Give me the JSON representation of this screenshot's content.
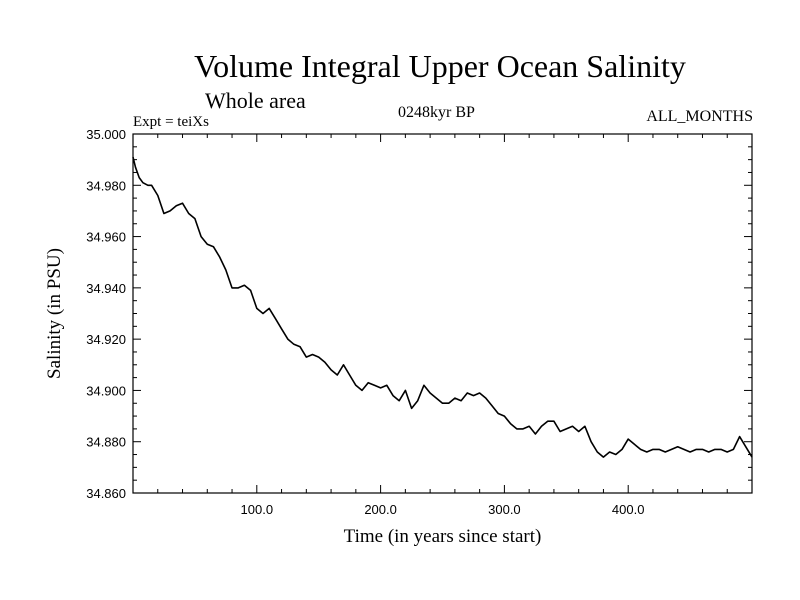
{
  "header": {
    "title": "Volume Integral Upper Ocean Salinity",
    "subtitle": "Whole area",
    "experiment": "Expt = teiXs",
    "period": "0248kyr BP",
    "months": "ALL_MONTHS"
  },
  "chart_data": {
    "type": "line",
    "title": "Volume Integral Upper Ocean Salinity",
    "subtitle": "Whole area",
    "xlabel": "Time (in years since start)",
    "ylabel": "Salinity (in PSU)",
    "xlim": [
      0,
      500
    ],
    "ylim": [
      34.86,
      35.0
    ],
    "xticks": [
      100,
      200,
      300,
      400
    ],
    "xtick_labels": [
      "100.0",
      "200.0",
      "300.0",
      "400.0"
    ],
    "yticks": [
      34.86,
      34.88,
      34.9,
      34.92,
      34.94,
      34.96,
      34.98,
      35.0
    ],
    "ytick_labels": [
      "34.860",
      "34.880",
      "34.900",
      "34.920",
      "34.940",
      "34.960",
      "34.980",
      "35.000"
    ],
    "grid": false,
    "legend": "none",
    "series": [
      {
        "color": "#000000",
        "x": [
          0,
          2,
          5,
          8,
          12,
          15,
          20,
          25,
          30,
          35,
          40,
          45,
          50,
          55,
          60,
          65,
          70,
          75,
          80,
          85,
          90,
          95,
          100,
          105,
          110,
          115,
          120,
          125,
          130,
          135,
          140,
          145,
          150,
          155,
          160,
          165,
          170,
          175,
          180,
          185,
          190,
          195,
          200,
          205,
          210,
          215,
          220,
          225,
          230,
          235,
          240,
          245,
          250,
          255,
          260,
          265,
          270,
          275,
          280,
          285,
          290,
          295,
          300,
          305,
          310,
          315,
          320,
          325,
          330,
          335,
          340,
          345,
          350,
          355,
          360,
          365,
          370,
          375,
          380,
          385,
          390,
          395,
          400,
          405,
          410,
          415,
          420,
          425,
          430,
          435,
          440,
          445,
          450,
          455,
          460,
          465,
          470,
          475,
          480,
          485,
          490,
          495,
          500
        ],
        "y": [
          34.991,
          34.987,
          34.983,
          34.981,
          34.98,
          34.98,
          34.976,
          34.969,
          34.97,
          34.972,
          34.973,
          34.969,
          34.967,
          34.96,
          34.957,
          34.956,
          34.952,
          34.947,
          34.94,
          34.94,
          34.941,
          34.939,
          34.932,
          34.93,
          34.932,
          34.928,
          34.924,
          34.92,
          34.918,
          34.917,
          34.913,
          34.914,
          34.913,
          34.911,
          34.908,
          34.906,
          34.91,
          34.906,
          34.902,
          34.9,
          34.903,
          34.902,
          34.901,
          34.902,
          34.898,
          34.896,
          34.9,
          34.893,
          34.896,
          34.902,
          34.899,
          34.897,
          34.895,
          34.895,
          34.897,
          34.896,
          34.899,
          34.898,
          34.899,
          34.897,
          34.894,
          34.891,
          34.89,
          34.887,
          34.885,
          34.885,
          34.886,
          34.883,
          34.886,
          34.888,
          34.888,
          34.884,
          34.885,
          34.886,
          34.884,
          34.886,
          34.88,
          34.876,
          34.874,
          34.876,
          34.875,
          34.877,
          34.881,
          34.879,
          34.877,
          34.876,
          34.877,
          34.877,
          34.876,
          34.877,
          34.878,
          34.877,
          34.876,
          34.877,
          34.877,
          34.876,
          34.877,
          34.877,
          34.876,
          34.877,
          34.882,
          34.878,
          34.874
        ]
      }
    ]
  }
}
